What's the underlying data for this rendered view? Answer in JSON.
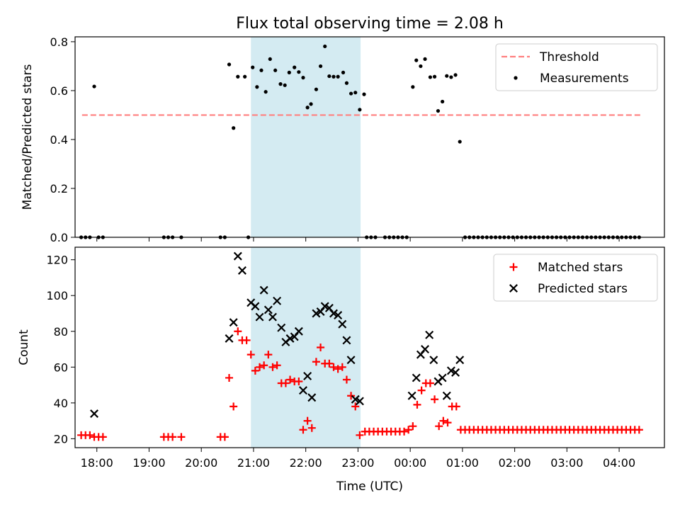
{
  "figure": {
    "title": "Flux total observing time = 2.08 h"
  },
  "colors": {
    "threshold": "#ff7f7f",
    "measurement": "#000000",
    "matched": "#ff0000",
    "predicted": "#000000",
    "highlight": "#add8e6"
  },
  "chart_data": [
    {
      "type": "scatter",
      "ylabel": "Matched/Predicted stars",
      "xlabel": "",
      "ylim": [
        0,
        0.82
      ],
      "yticks": [
        0.0,
        0.2,
        0.4,
        0.6,
        0.8
      ],
      "ytick_labels": [
        "0.0",
        "0.2",
        "0.4",
        "0.6",
        "0.8"
      ],
      "xlim": [
        "17:35",
        "04:52"
      ],
      "highlight_span": [
        "20:57",
        "23:03"
      ],
      "legend": {
        "position": "top-right",
        "entries": [
          "Threshold",
          "Measurements"
        ]
      },
      "series": [
        {
          "name": "Threshold",
          "kind": "dashed-line",
          "x": [
            "17:43",
            "04:25"
          ],
          "y": [
            0.5,
            0.5
          ]
        },
        {
          "name": "Measurements",
          "kind": "dot",
          "points": [
            [
              "17:42",
              0
            ],
            [
              "17:47",
              0
            ],
            [
              "17:52",
              0
            ],
            [
              "17:57",
              0.617
            ],
            [
              "18:02",
              0
            ],
            [
              "18:07",
              0
            ],
            [
              "19:17",
              0
            ],
            [
              "19:22",
              0
            ],
            [
              "19:27",
              0
            ],
            [
              "19:37",
              0
            ],
            [
              "20:22",
              0
            ],
            [
              "20:27",
              0
            ],
            [
              "20:32",
              0.707
            ],
            [
              "20:37",
              0.447
            ],
            [
              "20:42",
              0.657
            ],
            [
              "20:50",
              0.657
            ],
            [
              "20:54",
              0
            ],
            [
              "20:59",
              0.695
            ],
            [
              "21:04",
              0.615
            ],
            [
              "21:09",
              0.683
            ],
            [
              "21:14",
              0.595
            ],
            [
              "21:19",
              0.729
            ],
            [
              "21:25",
              0.683
            ],
            [
              "21:31",
              0.627
            ],
            [
              "21:36",
              0.622
            ],
            [
              "21:41",
              0.674
            ],
            [
              "21:47",
              0.695
            ],
            [
              "21:52",
              0.676
            ],
            [
              "21:57",
              0.653
            ],
            [
              "22:02",
              0.531
            ],
            [
              "22:06",
              0.545
            ],
            [
              "22:12",
              0.605
            ],
            [
              "22:17",
              0.7
            ],
            [
              "22:22",
              0.781
            ],
            [
              "22:27",
              0.659
            ],
            [
              "22:32",
              0.657
            ],
            [
              "22:37",
              0.657
            ],
            [
              "22:43",
              0.674
            ],
            [
              "22:47",
              0.631
            ],
            [
              "22:52",
              0.588
            ],
            [
              "22:57",
              0.592
            ],
            [
              "23:02",
              0.522
            ],
            [
              "23:07",
              0.585
            ],
            [
              "23:10",
              0
            ],
            [
              "23:15",
              0
            ],
            [
              "23:20",
              0
            ],
            [
              "23:31",
              0
            ],
            [
              "23:36",
              0
            ],
            [
              "23:41",
              0
            ],
            [
              "23:46",
              0
            ],
            [
              "23:51",
              0
            ],
            [
              "23:56",
              0
            ],
            [
              "00:03",
              0.615
            ],
            [
              "00:07",
              0.724
            ],
            [
              "00:12",
              0.7
            ],
            [
              "00:17",
              0.729
            ],
            [
              "00:23",
              0.655
            ],
            [
              "00:28",
              0.657
            ],
            [
              "00:32",
              0.517
            ],
            [
              "00:37",
              0.555
            ],
            [
              "00:42",
              0.66
            ],
            [
              "00:47",
              0.655
            ],
            [
              "00:52",
              0.664
            ],
            [
              "00:57",
              0.391
            ]
          ],
          "zero_run": {
            "from": "01:03",
            "to": "04:25",
            "step_minutes": 5,
            "value": 0
          }
        }
      ]
    },
    {
      "type": "scatter",
      "ylabel": "Count",
      "xlabel": "Time (UTC)",
      "ylim": [
        15,
        127
      ],
      "yticks": [
        20,
        40,
        60,
        80,
        100,
        120
      ],
      "ytick_labels": [
        "20",
        "40",
        "60",
        "80",
        "100",
        "120"
      ],
      "xlim": [
        "17:35",
        "04:52"
      ],
      "xticks": [
        "18:00",
        "19:00",
        "20:00",
        "21:00",
        "22:00",
        "23:00",
        "00:00",
        "01:00",
        "02:00",
        "03:00",
        "04:00"
      ],
      "highlight_span": [
        "20:57",
        "23:03"
      ],
      "legend": {
        "position": "top-right",
        "entries": [
          "Matched stars",
          "Predicted stars"
        ]
      },
      "series": [
        {
          "name": "Matched stars",
          "kind": "plus",
          "points": [
            [
              "17:42",
              22
            ],
            [
              "17:47",
              22
            ],
            [
              "17:52",
              22
            ],
            [
              "17:57",
              21
            ],
            [
              "18:02",
              21
            ],
            [
              "18:07",
              21
            ],
            [
              "19:17",
              21
            ],
            [
              "19:22",
              21
            ],
            [
              "19:27",
              21
            ],
            [
              "19:37",
              21
            ],
            [
              "20:22",
              21
            ],
            [
              "20:27",
              21
            ],
            [
              "20:32",
              54
            ],
            [
              "20:37",
              38
            ],
            [
              "20:42",
              80
            ],
            [
              "20:47",
              75
            ],
            [
              "20:52",
              75
            ],
            [
              "20:57",
              67
            ],
            [
              "21:02",
              58
            ],
            [
              "21:07",
              60
            ],
            [
              "21:12",
              61
            ],
            [
              "21:17",
              67
            ],
            [
              "21:22",
              60
            ],
            [
              "21:27",
              61
            ],
            [
              "21:32",
              51
            ],
            [
              "21:37",
              51
            ],
            [
              "21:42",
              53
            ],
            [
              "21:47",
              52
            ],
            [
              "21:52",
              52
            ],
            [
              "21:57",
              25
            ],
            [
              "22:02",
              30
            ],
            [
              "22:07",
              26
            ],
            [
              "22:12",
              63
            ],
            [
              "22:17",
              71
            ],
            [
              "22:22",
              62
            ],
            [
              "22:27",
              62
            ],
            [
              "22:32",
              60
            ],
            [
              "22:37",
              59
            ],
            [
              "22:42",
              60
            ],
            [
              "22:47",
              53
            ],
            [
              "22:52",
              44
            ],
            [
              "22:57",
              38
            ],
            [
              "23:02",
              22
            ],
            [
              "23:08",
              24
            ],
            [
              "23:13",
              24
            ],
            [
              "23:18",
              24
            ],
            [
              "23:23",
              24
            ],
            [
              "23:28",
              24
            ],
            [
              "23:33",
              24
            ],
            [
              "23:38",
              24
            ],
            [
              "23:43",
              24
            ],
            [
              "23:48",
              24
            ],
            [
              "23:53",
              24
            ],
            [
              "23:58",
              25
            ],
            [
              "00:03",
              27
            ],
            [
              "00:08",
              39
            ],
            [
              "00:13",
              47
            ],
            [
              "00:18",
              51
            ],
            [
              "00:23",
              51
            ],
            [
              "00:28",
              42
            ],
            [
              "00:33",
              27
            ],
            [
              "00:38",
              30
            ],
            [
              "00:43",
              29
            ],
            [
              "00:48",
              38
            ],
            [
              "00:53",
              38
            ]
          ],
          "flat_run": {
            "from": "00:58",
            "to": "04:25",
            "step_minutes": 5,
            "value": 25
          }
        },
        {
          "name": "Predicted stars",
          "kind": "x",
          "points": [
            [
              "17:57",
              34
            ],
            [
              "20:32",
              76
            ],
            [
              "20:37",
              85
            ],
            [
              "20:42",
              122
            ],
            [
              "20:47",
              114
            ],
            [
              "20:57",
              96
            ],
            [
              "21:02",
              94
            ],
            [
              "21:07",
              88
            ],
            [
              "21:12",
              103
            ],
            [
              "21:17",
              92
            ],
            [
              "21:22",
              88
            ],
            [
              "21:27",
              97
            ],
            [
              "21:32",
              82
            ],
            [
              "21:37",
              74
            ],
            [
              "21:42",
              76
            ],
            [
              "21:47",
              77
            ],
            [
              "21:52",
              80
            ],
            [
              "21:57",
              47
            ],
            [
              "22:02",
              55
            ],
            [
              "22:07",
              43
            ],
            [
              "22:12",
              90
            ],
            [
              "22:17",
              91
            ],
            [
              "22:22",
              94
            ],
            [
              "22:27",
              93
            ],
            [
              "22:32",
              90
            ],
            [
              "22:37",
              89
            ],
            [
              "22:42",
              84
            ],
            [
              "22:47",
              75
            ],
            [
              "22:52",
              64
            ],
            [
              "22:57",
              42
            ],
            [
              "23:02",
              41
            ],
            [
              "00:02",
              44
            ],
            [
              "00:07",
              54
            ],
            [
              "00:12",
              67
            ],
            [
              "00:17",
              70
            ],
            [
              "00:22",
              78
            ],
            [
              "00:27",
              64
            ],
            [
              "00:32",
              52
            ],
            [
              "00:37",
              54
            ],
            [
              "00:42",
              44
            ],
            [
              "00:47",
              58
            ],
            [
              "00:52",
              57
            ],
            [
              "00:57",
              64
            ]
          ]
        }
      ]
    }
  ]
}
